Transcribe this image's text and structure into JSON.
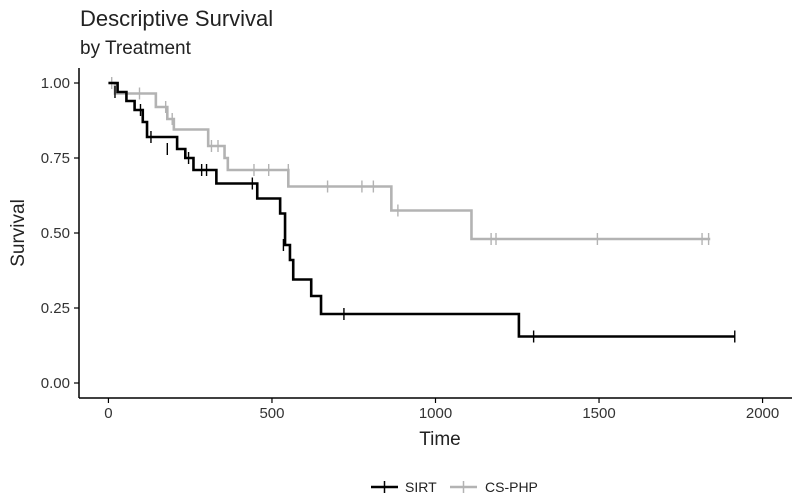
{
  "chart_data": {
    "type": "line",
    "title": "Descriptive Survival",
    "subtitle": "by Treatment",
    "xlabel": "Time",
    "ylabel": "Survival",
    "xlim": [
      -90,
      2090
    ],
    "ylim": [
      -0.05,
      1.05
    ],
    "x_ticks": [
      0,
      500,
      1000,
      1500,
      2000
    ],
    "y_ticks": [
      0,
      0.25,
      0.5,
      0.75,
      1.0
    ],
    "x_tick_labels": [
      "0",
      "500",
      "1000",
      "1500",
      "2000"
    ],
    "y_tick_labels": [
      "0.00",
      "0.25",
      "0.50",
      "0.75",
      "1.00"
    ],
    "grid": false,
    "legend": "bottom",
    "series": [
      {
        "name": "SIRT",
        "color": "#000000",
        "steps": [
          [
            0,
            1.0
          ],
          [
            28,
            0.97
          ],
          [
            55,
            0.94
          ],
          [
            80,
            0.91
          ],
          [
            105,
            0.87
          ],
          [
            118,
            0.82
          ],
          [
            210,
            0.78
          ],
          [
            235,
            0.75
          ],
          [
            260,
            0.71
          ],
          [
            330,
            0.665
          ],
          [
            455,
            0.615
          ],
          [
            525,
            0.565
          ],
          [
            540,
            0.46
          ],
          [
            555,
            0.41
          ],
          [
            565,
            0.345
          ],
          [
            620,
            0.29
          ],
          [
            650,
            0.23
          ],
          [
            1255,
            0.155
          ],
          [
            1915,
            0.155
          ]
        ],
        "censors": [
          [
            20,
            0.97
          ],
          [
            98,
            0.91
          ],
          [
            130,
            0.82
          ],
          [
            180,
            0.78
          ],
          [
            245,
            0.75
          ],
          [
            285,
            0.71
          ],
          [
            300,
            0.71
          ],
          [
            440,
            0.665
          ],
          [
            535,
            0.46
          ],
          [
            720,
            0.23
          ],
          [
            1300,
            0.155
          ],
          [
            1915,
            0.155
          ]
        ]
      },
      {
        "name": "CS-PHP",
        "color": "#b3b3b3",
        "steps": [
          [
            0,
            1.0
          ],
          [
            20,
            0.965
          ],
          [
            145,
            0.92
          ],
          [
            180,
            0.88
          ],
          [
            200,
            0.845
          ],
          [
            305,
            0.79
          ],
          [
            355,
            0.75
          ],
          [
            365,
            0.71
          ],
          [
            550,
            0.655
          ],
          [
            865,
            0.575
          ],
          [
            1110,
            0.48
          ],
          [
            1840,
            0.48
          ]
        ],
        "censors": [
          [
            10,
            1.0
          ],
          [
            95,
            0.965
          ],
          [
            175,
            0.92
          ],
          [
            195,
            0.88
          ],
          [
            315,
            0.79
          ],
          [
            335,
            0.79
          ],
          [
            445,
            0.71
          ],
          [
            490,
            0.71
          ],
          [
            550,
            0.71
          ],
          [
            670,
            0.655
          ],
          [
            775,
            0.655
          ],
          [
            810,
            0.655
          ],
          [
            885,
            0.575
          ],
          [
            1170,
            0.48
          ],
          [
            1185,
            0.48
          ],
          [
            1495,
            0.48
          ],
          [
            1815,
            0.48
          ],
          [
            1835,
            0.48
          ]
        ]
      }
    ]
  }
}
